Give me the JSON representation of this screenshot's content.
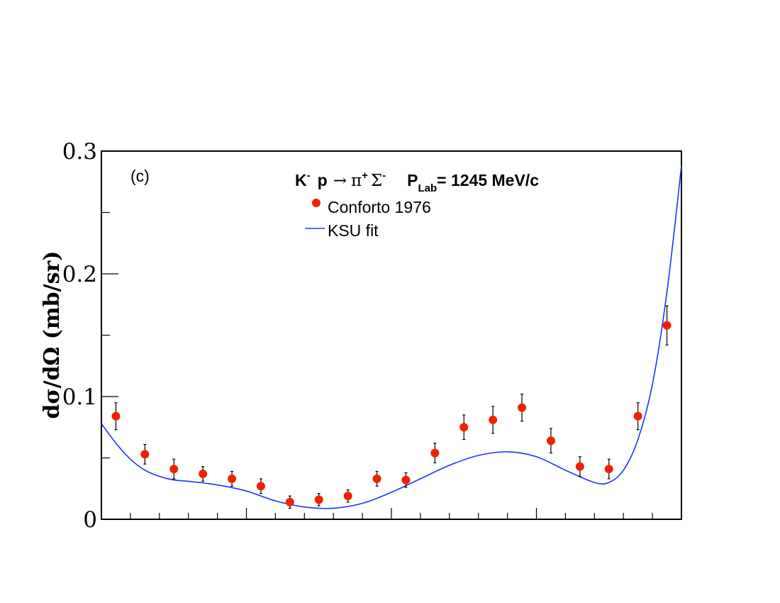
{
  "chart_data": {
    "type": "scatter",
    "panel_label": "(c)",
    "title": {
      "reaction_k": "K",
      "reaction_k_sup": "-",
      "reaction_p": "p",
      "reaction_arrow": "→",
      "reaction_pi": "π",
      "reaction_pi_sup": "+",
      "reaction_sigma": "Σ",
      "reaction_sigma_sup": "-",
      "plab_p": "P",
      "plab_sub": "Lab",
      "plab_value": "= 1245 MeV/c"
    },
    "ylabel": "dσ/dΩ (mb/sr)",
    "xlabel": "",
    "xlim": [
      -1,
      1
    ],
    "ylim": [
      0,
      0.3
    ],
    "y_ticks": [
      {
        "value": 0,
        "label": "0"
      },
      {
        "value": 0.1,
        "label": "0.1"
      },
      {
        "value": 0.2,
        "label": "0.2"
      },
      {
        "value": 0.3,
        "label": "0.3"
      }
    ],
    "x_major_ticks": [
      -0.5,
      0,
      0.5
    ],
    "x_minor_step": 0.1,
    "y_minor_step": 0.05,
    "legend": [
      {
        "label": "Conforto 1976",
        "marker": "circle",
        "color": "#ee2200"
      },
      {
        "label": "KSU fit",
        "marker": "line",
        "color": "#1a33ff"
      }
    ],
    "series": [
      {
        "name": "Conforto 1976",
        "kind": "points",
        "color": "#ee2200",
        "x": [
          -0.95,
          -0.85,
          -0.75,
          -0.65,
          -0.55,
          -0.45,
          -0.35,
          -0.25,
          -0.15,
          -0.05,
          0.05,
          0.15,
          0.25,
          0.35,
          0.45,
          0.55,
          0.65,
          0.75,
          0.85,
          0.95
        ],
        "y": [
          0.084,
          0.053,
          0.041,
          0.037,
          0.033,
          0.027,
          0.014,
          0.016,
          0.019,
          0.033,
          0.032,
          0.054,
          0.075,
          0.081,
          0.091,
          0.064,
          0.043,
          0.041,
          0.084,
          0.158
        ],
        "err": [
          0.011,
          0.008,
          0.008,
          0.006,
          0.006,
          0.006,
          0.005,
          0.005,
          0.005,
          0.006,
          0.006,
          0.008,
          0.01,
          0.011,
          0.011,
          0.01,
          0.008,
          0.008,
          0.011,
          0.016
        ]
      },
      {
        "name": "KSU fit",
        "kind": "line",
        "color": "#1a33ff",
        "x": [
          -1.0,
          -0.95,
          -0.9,
          -0.85,
          -0.8,
          -0.75,
          -0.7,
          -0.6,
          -0.5,
          -0.4,
          -0.3,
          -0.2,
          -0.1,
          0.0,
          0.1,
          0.2,
          0.3,
          0.4,
          0.5,
          0.6,
          0.7,
          0.75,
          0.8,
          0.85,
          0.9,
          0.95,
          1.0
        ],
        "y": [
          0.078,
          0.062,
          0.049,
          0.04,
          0.035,
          0.032,
          0.031,
          0.028,
          0.023,
          0.015,
          0.01,
          0.009,
          0.013,
          0.022,
          0.033,
          0.044,
          0.052,
          0.055,
          0.051,
          0.04,
          0.03,
          0.03,
          0.04,
          0.065,
          0.11,
          0.185,
          0.288
        ]
      }
    ]
  }
}
